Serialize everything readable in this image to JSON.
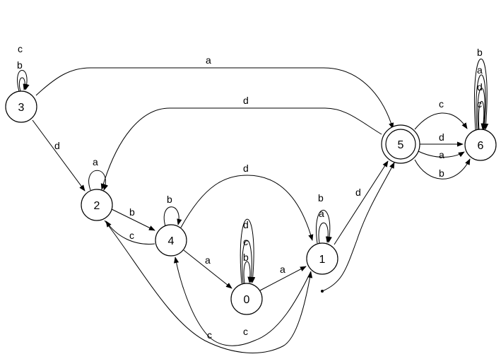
{
  "states": [
    {
      "id": "s0",
      "label": "0",
      "accepting": false
    },
    {
      "id": "s1",
      "label": "1",
      "accepting": false
    },
    {
      "id": "s2",
      "label": "2",
      "accepting": false
    },
    {
      "id": "s3",
      "label": "3",
      "accepting": false
    },
    {
      "id": "s4",
      "label": "4",
      "accepting": false
    },
    {
      "id": "s5",
      "label": "5",
      "accepting": true
    },
    {
      "id": "s6",
      "label": "6",
      "accepting": false
    }
  ],
  "transitions": [
    {
      "from": "3",
      "to": "3",
      "labels": [
        "c",
        "b"
      ]
    },
    {
      "from": "3",
      "to": "5",
      "labels": [
        "a"
      ]
    },
    {
      "from": "3",
      "to": "2",
      "labels": [
        "d"
      ]
    },
    {
      "from": "5",
      "to": "2",
      "labels": [
        "d"
      ]
    },
    {
      "from": "2",
      "to": "2",
      "labels": [
        "a"
      ]
    },
    {
      "from": "2",
      "to": "4",
      "labels": [
        "b"
      ]
    },
    {
      "from": "4",
      "to": "2",
      "labels": [
        "c"
      ]
    },
    {
      "from": "4",
      "to": "4",
      "labels": [
        "b"
      ]
    },
    {
      "from": "4",
      "to": "1",
      "labels": [
        "d"
      ]
    },
    {
      "from": "4",
      "to": "0",
      "labels": [
        "a"
      ]
    },
    {
      "from": "2",
      "to": "1",
      "labels": [
        "c"
      ]
    },
    {
      "from": "1",
      "to": "4",
      "labels": [
        "c"
      ]
    },
    {
      "from": "0",
      "to": "0",
      "labels": [
        "d",
        "c",
        "b"
      ]
    },
    {
      "from": "0",
      "to": "1",
      "labels": [
        "a"
      ]
    },
    {
      "from": "1",
      "to": "1",
      "labels": [
        "b",
        "a"
      ]
    },
    {
      "from": "1",
      "to": "5",
      "labels": [
        "d"
      ]
    },
    {
      "from": "start",
      "to": "5",
      "labels": []
    },
    {
      "from": "5",
      "to": "6",
      "labels": [
        "c"
      ]
    },
    {
      "from": "5",
      "to": "6",
      "labels": [
        "d"
      ]
    },
    {
      "from": "5",
      "to": "6",
      "labels": [
        "a"
      ]
    },
    {
      "from": "5",
      "to": "6",
      "labels": [
        "b"
      ]
    },
    {
      "from": "6",
      "to": "6",
      "labels": [
        "b",
        "a",
        "d",
        "c"
      ]
    }
  ],
  "edge_labels": {
    "e3_3_c": "c",
    "e3_3_b": "b",
    "e3_5_a": "a",
    "e3_2_d": "d",
    "e5_2_d": "d",
    "e2_2_a": "a",
    "e2_4_b": "b",
    "e4_2_c": "c",
    "e4_4_b": "b",
    "e4_1_d": "d",
    "e4_0_a": "a",
    "e2_1_c": "c",
    "e1_4_c": "c",
    "e0_0_d": "d",
    "e0_0_c": "c",
    "e0_0_b": "b",
    "e0_1_a": "a",
    "e1_1_b": "b",
    "e1_1_a": "a",
    "e1_5_d": "d",
    "e5_6_c": "c",
    "e5_6_d": "d",
    "e5_6_a": "a",
    "e5_6_b": "b",
    "e6_6_b": "b",
    "e6_6_a": "a",
    "e6_6_d": "d",
    "e6_6_c": "c"
  }
}
